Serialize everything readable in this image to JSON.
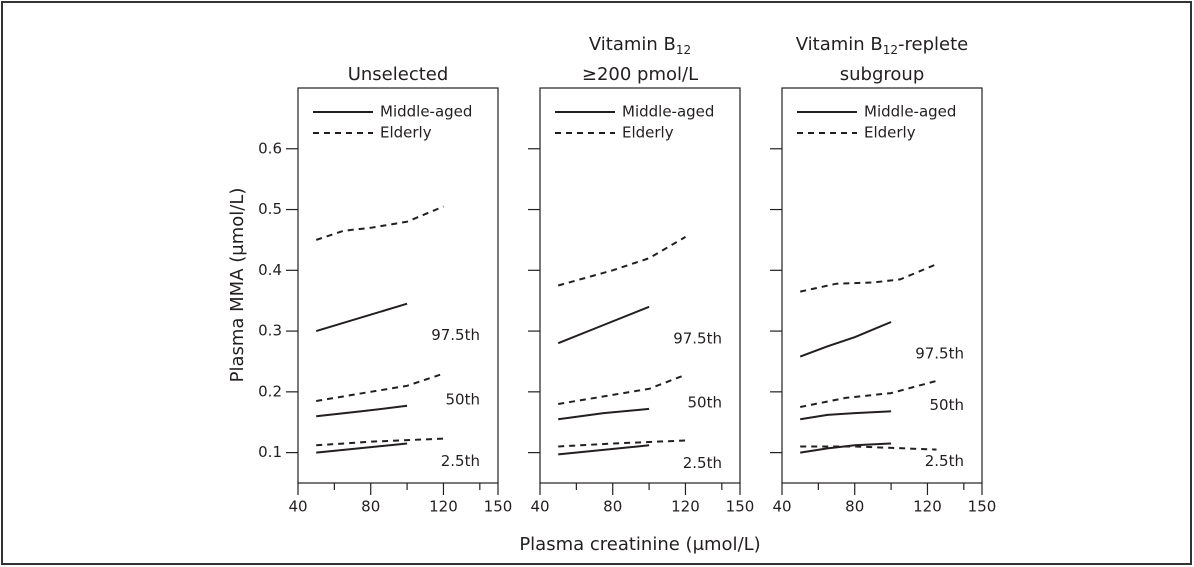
{
  "ylabel": "Plasma MMA (μmol/L)",
  "xlabel": "Plasma creatinine (μmol/L)",
  "chart_data": [
    {
      "type": "line",
      "title": [
        [
          "Unselected"
        ]
      ],
      "xlim": [
        40,
        150
      ],
      "xticks": [
        40,
        80,
        120,
        150
      ],
      "xminor": [
        60,
        100,
        140
      ],
      "ylim": [
        0.05,
        0.7
      ],
      "yticks": [
        0.1,
        0.2,
        0.3,
        0.4,
        0.5,
        0.6
      ],
      "ytick_labels": true,
      "percentiles": [
        {
          "label": "97.5th",
          "series": [
            {
              "name": "Middle-aged",
              "dashed": false,
              "x": [
                50,
                100
              ],
              "values": [
                0.3,
                0.345
              ]
            },
            {
              "name": "Elderly",
              "dashed": true,
              "x": [
                50,
                65,
                80,
                100,
                120
              ],
              "values": [
                0.45,
                0.465,
                0.47,
                0.48,
                0.505
              ]
            }
          ]
        },
        {
          "label": "50th",
          "series": [
            {
              "name": "Middle-aged",
              "dashed": false,
              "x": [
                50,
                75,
                100
              ],
              "values": [
                0.16,
                0.168,
                0.177
              ]
            },
            {
              "name": "Elderly",
              "dashed": true,
              "x": [
                50,
                80,
                100,
                120
              ],
              "values": [
                0.185,
                0.2,
                0.21,
                0.23
              ]
            }
          ]
        },
        {
          "label": "2.5th",
          "series": [
            {
              "name": "Middle-aged",
              "dashed": false,
              "x": [
                50,
                100
              ],
              "values": [
                0.1,
                0.115
              ]
            },
            {
              "name": "Elderly",
              "dashed": true,
              "x": [
                50,
                80,
                120
              ],
              "values": [
                0.112,
                0.118,
                0.123
              ]
            }
          ]
        }
      ]
    },
    {
      "type": "line",
      "title": [
        [
          "Vitamin B",
          "12"
        ],
        [
          "≥200 pmol/L"
        ]
      ],
      "xlim": [
        40,
        150
      ],
      "xticks": [
        40,
        80,
        120,
        150
      ],
      "xminor": [
        60,
        100,
        140
      ],
      "ylim": [
        0.05,
        0.7
      ],
      "yticks": [
        0.1,
        0.2,
        0.3,
        0.4,
        0.5,
        0.6
      ],
      "ytick_labels": false,
      "percentiles": [
        {
          "label": "97.5th",
          "series": [
            {
              "name": "Middle-aged",
              "dashed": false,
              "x": [
                50,
                75,
                100
              ],
              "values": [
                0.28,
                0.31,
                0.34
              ]
            },
            {
              "name": "Elderly",
              "dashed": true,
              "x": [
                50,
                80,
                100,
                120
              ],
              "values": [
                0.375,
                0.4,
                0.42,
                0.455
              ]
            }
          ]
        },
        {
          "label": "50th",
          "series": [
            {
              "name": "Middle-aged",
              "dashed": false,
              "x": [
                50,
                75,
                100
              ],
              "values": [
                0.155,
                0.165,
                0.172
              ]
            },
            {
              "name": "Elderly",
              "dashed": true,
              "x": [
                50,
                80,
                100,
                120
              ],
              "values": [
                0.18,
                0.195,
                0.205,
                0.228
              ]
            }
          ]
        },
        {
          "label": "2.5th",
          "series": [
            {
              "name": "Middle-aged",
              "dashed": false,
              "x": [
                50,
                100
              ],
              "values": [
                0.097,
                0.112
              ]
            },
            {
              "name": "Elderly",
              "dashed": true,
              "x": [
                50,
                80,
                120
              ],
              "values": [
                0.11,
                0.115,
                0.12
              ]
            }
          ]
        }
      ]
    },
    {
      "type": "line",
      "title": [
        [
          "Vitamin B",
          "12",
          "-replete"
        ],
        [
          "subgroup"
        ]
      ],
      "xlim": [
        40,
        150
      ],
      "xticks": [
        40,
        80,
        120,
        150
      ],
      "xminor": [
        60,
        100,
        140
      ],
      "ylim": [
        0.05,
        0.7
      ],
      "yticks": [
        0.1,
        0.2,
        0.3,
        0.4,
        0.5,
        0.6
      ],
      "ytick_labels": false,
      "percentiles": [
        {
          "label": "97.5th",
          "series": [
            {
              "name": "Middle-aged",
              "dashed": false,
              "x": [
                50,
                65,
                80,
                100
              ],
              "values": [
                0.258,
                0.275,
                0.29,
                0.315
              ]
            },
            {
              "name": "Elderly",
              "dashed": true,
              "x": [
                50,
                70,
                90,
                105,
                125
              ],
              "values": [
                0.365,
                0.378,
                0.38,
                0.385,
                0.41
              ]
            }
          ]
        },
        {
          "label": "50th",
          "series": [
            {
              "name": "Middle-aged",
              "dashed": false,
              "x": [
                50,
                65,
                80,
                100
              ],
              "values": [
                0.155,
                0.162,
                0.165,
                0.168
              ]
            },
            {
              "name": "Elderly",
              "dashed": true,
              "x": [
                50,
                75,
                100,
                125
              ],
              "values": [
                0.175,
                0.19,
                0.198,
                0.218
              ]
            }
          ]
        },
        {
          "label": "2.5th",
          "series": [
            {
              "name": "Middle-aged",
              "dashed": false,
              "x": [
                50,
                65,
                80,
                100
              ],
              "values": [
                0.1,
                0.107,
                0.112,
                0.115
              ]
            },
            {
              "name": "Elderly",
              "dashed": true,
              "x": [
                50,
                80,
                125
              ],
              "values": [
                0.11,
                0.11,
                0.105
              ]
            }
          ]
        }
      ]
    }
  ]
}
